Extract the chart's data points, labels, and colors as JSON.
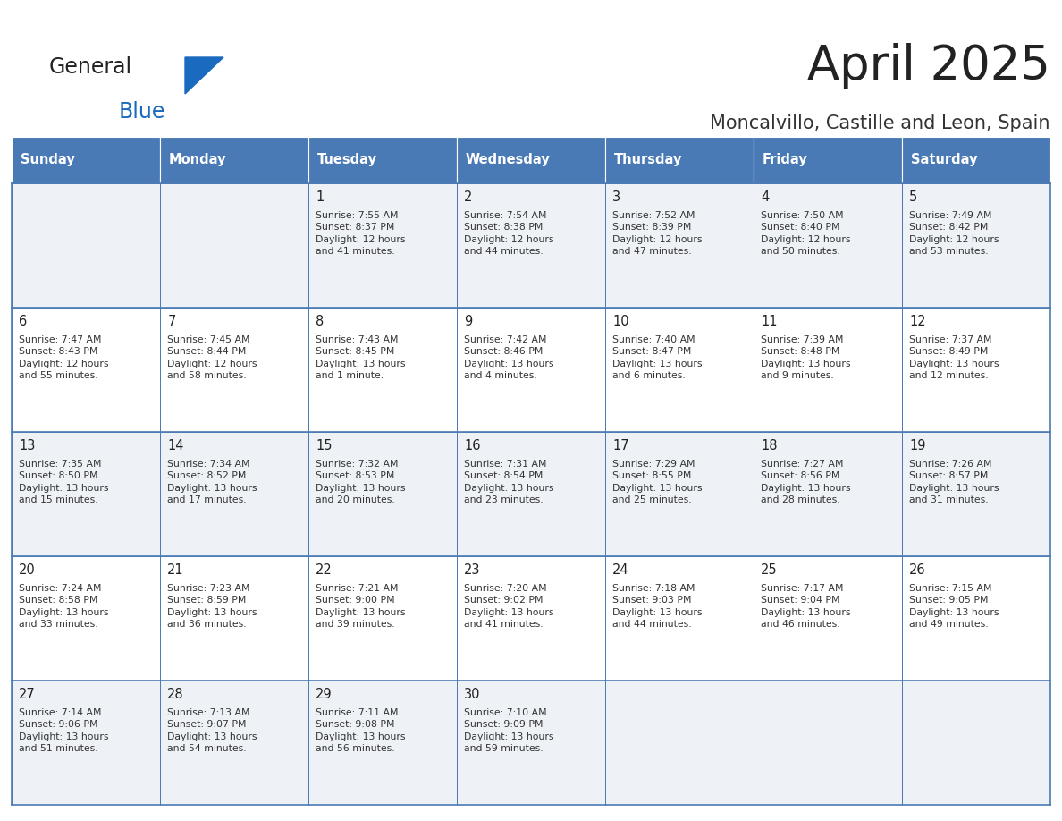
{
  "title": "April 2025",
  "subtitle": "Moncalvillo, Castille and Leon, Spain",
  "header_bg": "#4a7ab5",
  "header_text": "#ffffff",
  "row_bg_light": "#eef2f7",
  "row_bg_white": "#ffffff",
  "cell_border_color": "#4a7ab5",
  "day_number_color": "#222222",
  "info_text_color": "#333333",
  "day_names": [
    "Sunday",
    "Monday",
    "Tuesday",
    "Wednesday",
    "Thursday",
    "Friday",
    "Saturday"
  ],
  "calendar": [
    [
      "",
      "",
      "1\nSunrise: 7:55 AM\nSunset: 8:37 PM\nDaylight: 12 hours\nand 41 minutes.",
      "2\nSunrise: 7:54 AM\nSunset: 8:38 PM\nDaylight: 12 hours\nand 44 minutes.",
      "3\nSunrise: 7:52 AM\nSunset: 8:39 PM\nDaylight: 12 hours\nand 47 minutes.",
      "4\nSunrise: 7:50 AM\nSunset: 8:40 PM\nDaylight: 12 hours\nand 50 minutes.",
      "5\nSunrise: 7:49 AM\nSunset: 8:42 PM\nDaylight: 12 hours\nand 53 minutes."
    ],
    [
      "6\nSunrise: 7:47 AM\nSunset: 8:43 PM\nDaylight: 12 hours\nand 55 minutes.",
      "7\nSunrise: 7:45 AM\nSunset: 8:44 PM\nDaylight: 12 hours\nand 58 minutes.",
      "8\nSunrise: 7:43 AM\nSunset: 8:45 PM\nDaylight: 13 hours\nand 1 minute.",
      "9\nSunrise: 7:42 AM\nSunset: 8:46 PM\nDaylight: 13 hours\nand 4 minutes.",
      "10\nSunrise: 7:40 AM\nSunset: 8:47 PM\nDaylight: 13 hours\nand 6 minutes.",
      "11\nSunrise: 7:39 AM\nSunset: 8:48 PM\nDaylight: 13 hours\nand 9 minutes.",
      "12\nSunrise: 7:37 AM\nSunset: 8:49 PM\nDaylight: 13 hours\nand 12 minutes."
    ],
    [
      "13\nSunrise: 7:35 AM\nSunset: 8:50 PM\nDaylight: 13 hours\nand 15 minutes.",
      "14\nSunrise: 7:34 AM\nSunset: 8:52 PM\nDaylight: 13 hours\nand 17 minutes.",
      "15\nSunrise: 7:32 AM\nSunset: 8:53 PM\nDaylight: 13 hours\nand 20 minutes.",
      "16\nSunrise: 7:31 AM\nSunset: 8:54 PM\nDaylight: 13 hours\nand 23 minutes.",
      "17\nSunrise: 7:29 AM\nSunset: 8:55 PM\nDaylight: 13 hours\nand 25 minutes.",
      "18\nSunrise: 7:27 AM\nSunset: 8:56 PM\nDaylight: 13 hours\nand 28 minutes.",
      "19\nSunrise: 7:26 AM\nSunset: 8:57 PM\nDaylight: 13 hours\nand 31 minutes."
    ],
    [
      "20\nSunrise: 7:24 AM\nSunset: 8:58 PM\nDaylight: 13 hours\nand 33 minutes.",
      "21\nSunrise: 7:23 AM\nSunset: 8:59 PM\nDaylight: 13 hours\nand 36 minutes.",
      "22\nSunrise: 7:21 AM\nSunset: 9:00 PM\nDaylight: 13 hours\nand 39 minutes.",
      "23\nSunrise: 7:20 AM\nSunset: 9:02 PM\nDaylight: 13 hours\nand 41 minutes.",
      "24\nSunrise: 7:18 AM\nSunset: 9:03 PM\nDaylight: 13 hours\nand 44 minutes.",
      "25\nSunrise: 7:17 AM\nSunset: 9:04 PM\nDaylight: 13 hours\nand 46 minutes.",
      "26\nSunrise: 7:15 AM\nSunset: 9:05 PM\nDaylight: 13 hours\nand 49 minutes."
    ],
    [
      "27\nSunrise: 7:14 AM\nSunset: 9:06 PM\nDaylight: 13 hours\nand 51 minutes.",
      "28\nSunrise: 7:13 AM\nSunset: 9:07 PM\nDaylight: 13 hours\nand 54 minutes.",
      "29\nSunrise: 7:11 AM\nSunset: 9:08 PM\nDaylight: 13 hours\nand 56 minutes.",
      "30\nSunrise: 7:10 AM\nSunset: 9:09 PM\nDaylight: 13 hours\nand 59 minutes.",
      "",
      "",
      ""
    ]
  ],
  "logo_general_color": "#222222",
  "logo_blue_color": "#1a6bbf",
  "logo_triangle_color": "#1a6bbf",
  "title_color": "#222222",
  "subtitle_color": "#333333"
}
